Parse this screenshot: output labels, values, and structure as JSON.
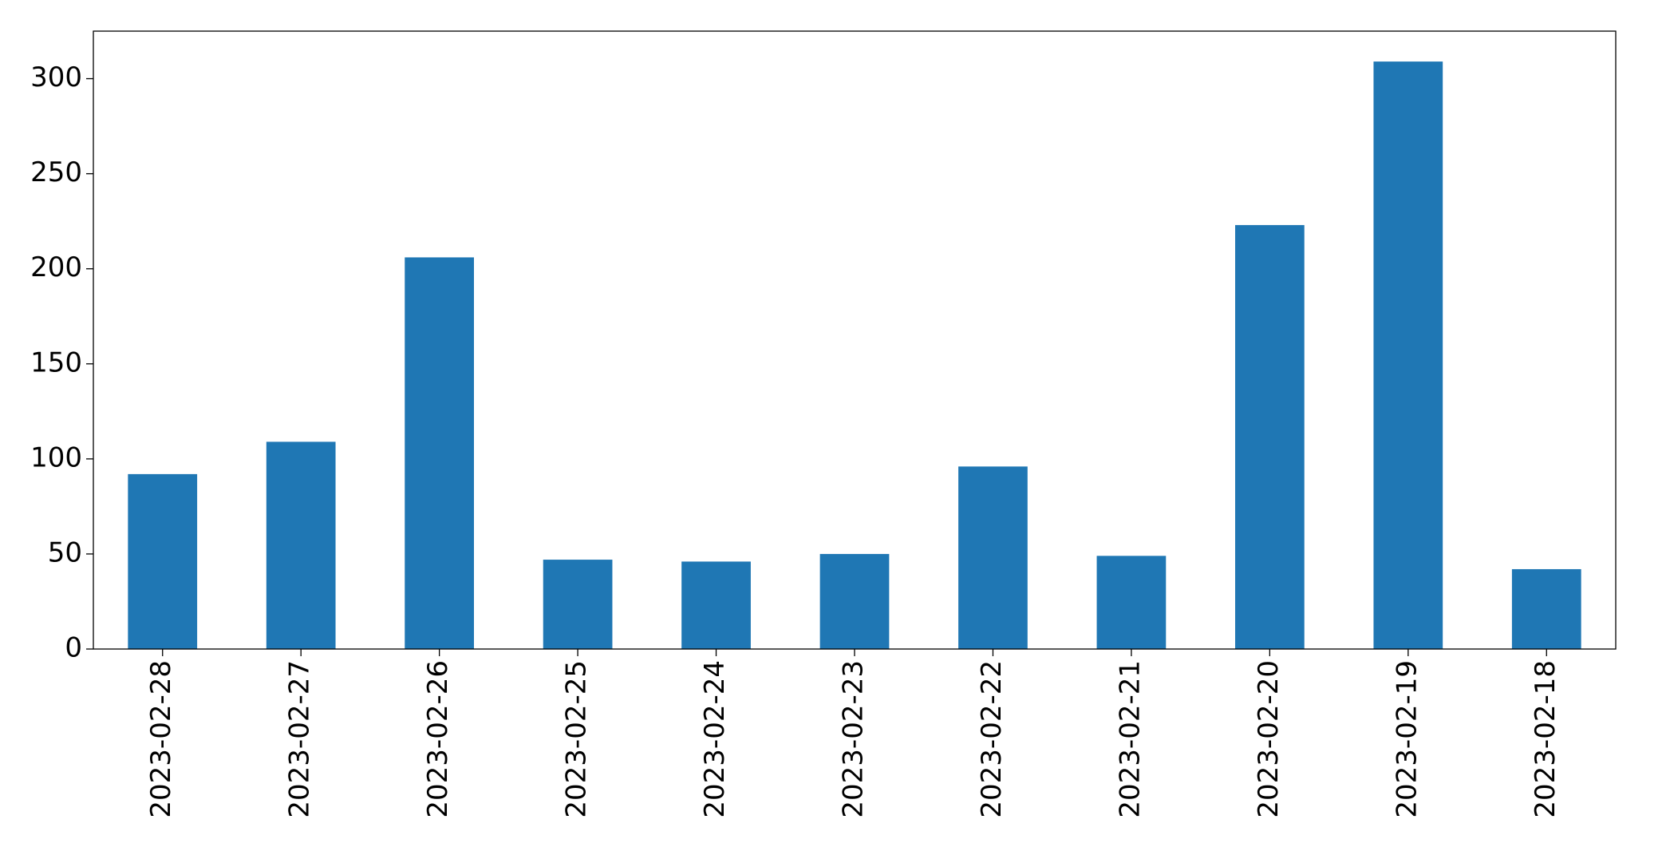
{
  "chart_data": {
    "type": "bar",
    "categories": [
      "2023-02-28",
      "2023-02-27",
      "2023-02-26",
      "2023-02-25",
      "2023-02-24",
      "2023-02-23",
      "2023-02-22",
      "2023-02-21",
      "2023-02-20",
      "2023-02-19",
      "2023-02-18"
    ],
    "values": [
      92,
      109,
      206,
      47,
      46,
      50,
      96,
      49,
      223,
      309,
      42
    ],
    "color": "#1f77b4",
    "ylim": [
      0,
      325
    ],
    "yticks": [
      0,
      50,
      100,
      150,
      200,
      250,
      300
    ],
    "grid": false
  }
}
